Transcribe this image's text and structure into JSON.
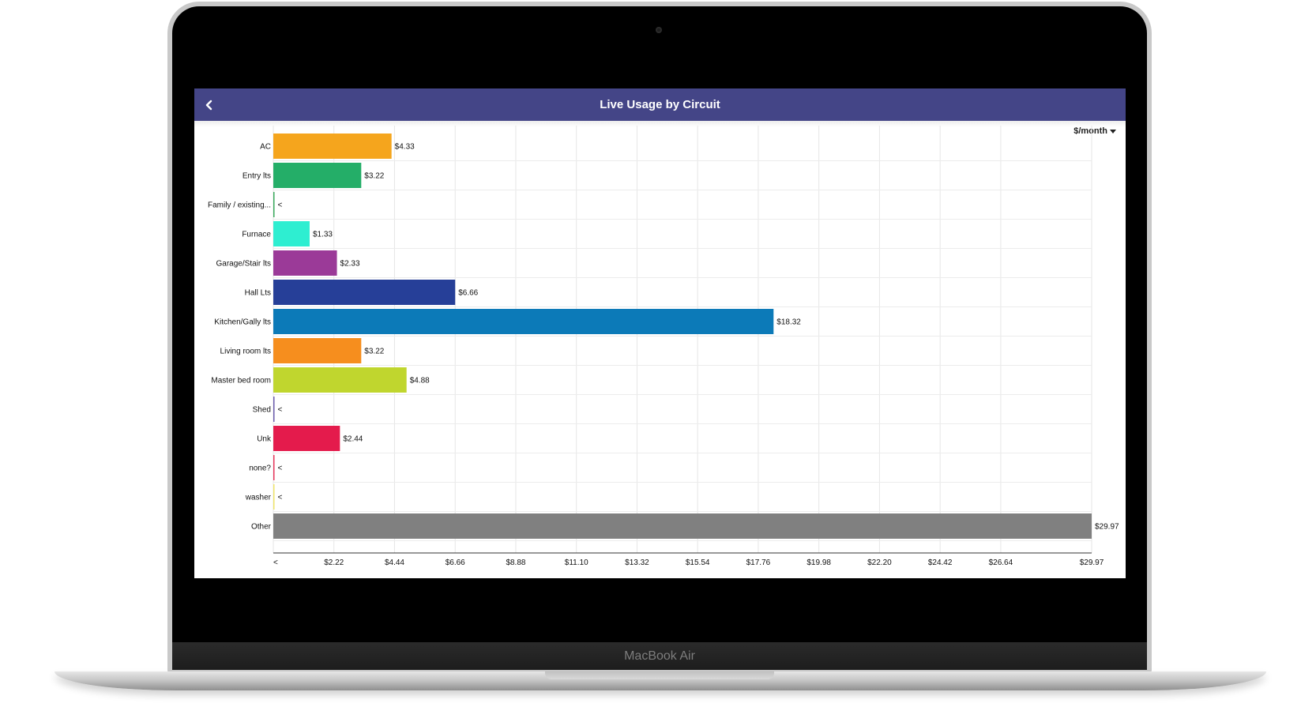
{
  "device": {
    "brand": "MacBook Air"
  },
  "header": {
    "title": "Live Usage by Circuit",
    "back_icon": "chevron-left-icon",
    "background": "#444587"
  },
  "units_selector": {
    "label": "$/month",
    "icon": "caret-down-icon"
  },
  "chart_data": {
    "type": "bar",
    "orientation": "horizontal",
    "categories": [
      "AC",
      "Entry lts",
      "Family / existing...",
      "Furnace",
      "Garage/Stair lts",
      "Hall Lts",
      "Kitchen/Gally lts",
      "Living room lts",
      "Master bed room",
      "Shed",
      "Unk",
      "none?",
      "washer",
      "Other"
    ],
    "values": [
      4.33,
      3.22,
      0.03,
      1.33,
      2.33,
      6.66,
      18.32,
      3.22,
      4.88,
      0.03,
      2.44,
      0.03,
      0.03,
      29.97
    ],
    "data_labels": [
      "$4.33",
      "$3.22",
      "<",
      "$1.33",
      "$2.33",
      "$6.66",
      "$18.32",
      "$3.22",
      "$4.88",
      "<",
      "$2.44",
      "<",
      "<",
      "$29.97"
    ],
    "colors": [
      "#f5a51d",
      "#24ae68",
      "#3aaa5c",
      "#2eeed1",
      "#9b3a98",
      "#263f98",
      "#0c7ab8",
      "#f68e1e",
      "#c0d62e",
      "#6b5cae",
      "#e41b4c",
      "#e8375d",
      "#f0e66a",
      "#808080"
    ],
    "x_ticks": [
      "<",
      "$2.22",
      "$4.44",
      "$6.66",
      "$8.88",
      "$11.10",
      "$13.32",
      "$15.54",
      "$17.76",
      "$19.98",
      "$22.20",
      "$24.42",
      "$26.64",
      "$29.97"
    ],
    "x_tick_values": [
      0,
      2.22,
      4.44,
      6.66,
      8.88,
      11.1,
      13.32,
      15.54,
      17.76,
      19.98,
      22.2,
      24.42,
      26.64,
      29.97
    ],
    "xlim": [
      0,
      29.97
    ],
    "grid": true,
    "title": "",
    "xlabel": "",
    "ylabel": ""
  }
}
